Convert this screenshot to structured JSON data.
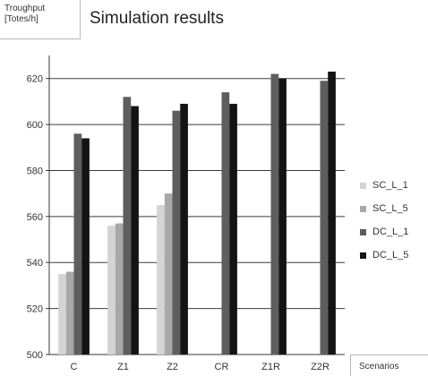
{
  "chart_data": {
    "type": "bar",
    "title": "Simulation results",
    "ylabel": "Troughput\n[Totes/h]",
    "xlabel": "Scenarios",
    "categories": [
      "C",
      "Z1",
      "Z2",
      "CR",
      "Z1R",
      "Z2R"
    ],
    "ylim": [
      500,
      630
    ],
    "yticks": [
      500,
      520,
      540,
      560,
      580,
      600,
      620
    ],
    "grid": true,
    "legend_position": "right",
    "series": [
      {
        "name": "SC_L_1",
        "color": "#d4d4d4",
        "values": [
          535,
          556,
          565,
          null,
          null,
          null
        ]
      },
      {
        "name": "SC_L_5",
        "color": "#a8a8a8",
        "values": [
          536,
          557,
          570,
          null,
          null,
          null
        ]
      },
      {
        "name": "DC_L_1",
        "color": "#5e5e5e",
        "values": [
          596,
          612,
          606,
          614,
          622,
          619
        ]
      },
      {
        "name": "DC_L_5",
        "color": "#141414",
        "values": [
          594,
          608,
          609,
          609,
          620,
          623
        ]
      }
    ]
  }
}
